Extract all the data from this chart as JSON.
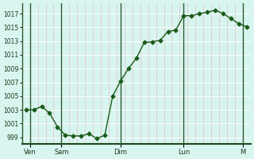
{
  "bg_color": "#d8f5f0",
  "grid_color_major": "#ffffff",
  "grid_color_minor": "#c8ece6",
  "line_color": "#1a5c1a",
  "marker_color": "#1a5c1a",
  "ylim": [
    998,
    1018.5
  ],
  "yticks": [
    999,
    1001,
    1003,
    1005,
    1007,
    1009,
    1011,
    1013,
    1015,
    1017
  ],
  "day_labels": [
    "Ven",
    "Sam",
    "Dim",
    "Lun",
    "M"
  ],
  "day_positions": [
    0.5,
    4.5,
    12,
    20,
    27.5
  ],
  "day_vlines": [
    0.5,
    4.5,
    12,
    20,
    27.5
  ],
  "x_values": [
    0,
    1,
    2,
    3,
    4,
    5,
    6,
    7,
    8,
    9,
    10,
    11,
    12,
    13,
    14,
    15,
    16,
    17,
    18,
    19,
    20,
    21,
    22,
    23,
    24,
    25,
    26,
    27,
    28
  ],
  "y_values": [
    1003,
    1003,
    1003.5,
    1002.5,
    1000.5,
    999.3,
    999.2,
    999.2,
    999.5,
    998.8,
    999.3,
    1005,
    1007.2,
    1009,
    1010.5,
    1012.8,
    1012.9,
    1013.1,
    1014.4,
    1014.6,
    1016.7,
    1016.7,
    1017,
    1017.2,
    1017.5,
    1017,
    1016.3,
    1015.5,
    1015.1
  ]
}
